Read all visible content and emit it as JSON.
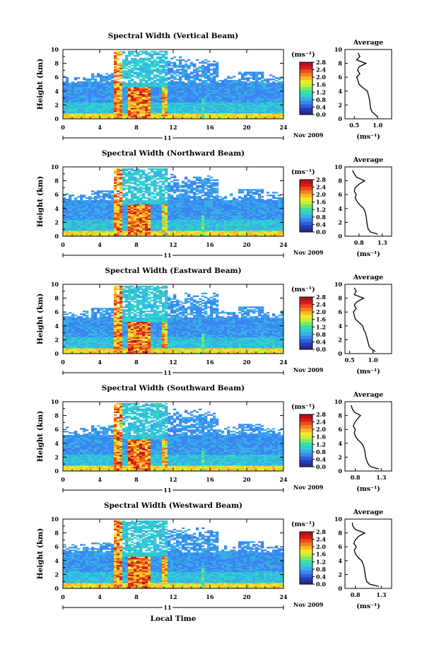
{
  "figure": {
    "xlabel": "Local Time",
    "date_label": "Nov 2009",
    "day_label": "11",
    "colorbar_unit": "(ms⁻¹)",
    "avg_title": "Average",
    "avg_unit": "(ms⁻¹)",
    "ylabel": "Height (km)"
  },
  "colormap": [
    "#2a2a8c",
    "#1f3dbf",
    "#2f5fe0",
    "#3a86f0",
    "#38aee8",
    "#2fd0d0",
    "#3ae0a0",
    "#7de866",
    "#c6ee3a",
    "#f5e62a",
    "#fbb62a",
    "#f7801f",
    "#ee4a1c",
    "#d81c1c",
    "#b4141a"
  ],
  "colorbar_ticks": [
    "0.0",
    "0.4",
    "0.8",
    "1.2",
    "1.6",
    "2.0",
    "2.4",
    "2.8"
  ],
  "chart_data": [
    {
      "type": "heatmap",
      "title": "Spectral Width (Vertical Beam)",
      "xlabel": "Local Time",
      "ylabel": "Height (km)",
      "xlim": [
        0,
        24
      ],
      "ylim": [
        0,
        10
      ],
      "xticks": [
        0,
        4,
        8,
        12,
        16,
        20,
        24
      ],
      "yticks": [
        0,
        2,
        4,
        6,
        8,
        10
      ],
      "colorbar": {
        "label": "(ms⁻¹)",
        "range": [
          0.0,
          2.8
        ],
        "ticks": [
          0.0,
          0.4,
          0.8,
          1.2,
          1.6,
          2.0,
          2.4,
          2.8
        ]
      },
      "average_profile": {
        "title": "Average",
        "xlabel": "(ms⁻¹)",
        "xlim": [
          0.3,
          1.3
        ],
        "xtick_labels": [
          "0.5",
          "1.0"
        ],
        "xticks": [
          0.5,
          1.0
        ],
        "ylim": [
          0,
          10
        ],
        "yticks": [
          0,
          2,
          4,
          6,
          8,
          10
        ],
        "height": [
          0.3,
          0.6,
          1.0,
          1.5,
          2.0,
          2.5,
          3.0,
          3.5,
          4.0,
          4.5,
          5.0,
          5.5,
          6.0,
          6.5,
          7.0,
          7.5,
          8.0,
          8.5,
          9.0,
          9.5
        ],
        "value": [
          1.0,
          0.95,
          0.88,
          0.85,
          0.84,
          0.83,
          0.82,
          0.8,
          0.78,
          0.68,
          0.6,
          0.58,
          0.55,
          0.62,
          0.57,
          0.6,
          0.75,
          0.55,
          0.62,
          0.58
        ]
      }
    },
    {
      "type": "heatmap",
      "title": "Spectral Width (Northward Beam)",
      "xlabel": "Local Time",
      "ylabel": "Height (km)",
      "xlim": [
        0,
        24
      ],
      "ylim": [
        0,
        10
      ],
      "xticks": [
        0,
        4,
        8,
        12,
        16,
        20,
        24
      ],
      "yticks": [
        0,
        2,
        4,
        6,
        8,
        10
      ],
      "colorbar": {
        "label": "(ms⁻¹)",
        "range": [
          0.0,
          2.8
        ],
        "ticks": [
          0.0,
          0.4,
          0.8,
          1.2,
          1.6,
          2.0,
          2.4,
          2.8
        ]
      },
      "average_profile": {
        "title": "Average",
        "xlabel": "(ms⁻¹)",
        "xlim": [
          0.5,
          1.5
        ],
        "xtick_labels": [
          "0.8",
          "1.3"
        ],
        "xticks": [
          0.8,
          1.3
        ],
        "ylim": [
          0,
          10
        ],
        "yticks": [
          0,
          2,
          4,
          6,
          8,
          10
        ],
        "height": [
          0.3,
          0.6,
          1.0,
          1.5,
          2.0,
          2.5,
          3.0,
          3.5,
          4.0,
          4.5,
          5.0,
          5.5,
          6.0,
          6.5,
          7.0,
          7.5,
          8.0,
          8.5,
          9.0,
          9.5
        ],
        "value": [
          1.2,
          1.05,
          1.0,
          0.98,
          0.97,
          0.96,
          0.95,
          0.93,
          0.9,
          0.82,
          0.76,
          0.72,
          0.74,
          0.7,
          0.72,
          0.8,
          0.92,
          0.75,
          0.7,
          0.66
        ]
      }
    },
    {
      "type": "heatmap",
      "title": "Spectral Width (Eastward Beam)",
      "xlabel": "Local Time",
      "ylabel": "Height (km)",
      "xlim": [
        0,
        24
      ],
      "ylim": [
        0,
        10
      ],
      "xticks": [
        0,
        4,
        8,
        12,
        16,
        20,
        24
      ],
      "yticks": [
        0,
        2,
        4,
        6,
        8,
        10
      ],
      "colorbar": {
        "label": "(ms⁻¹)",
        "range": [
          0.0,
          2.8
        ],
        "ticks": [
          0.0,
          0.4,
          0.8,
          1.2,
          1.6,
          2.0,
          2.4,
          2.8
        ]
      },
      "average_profile": {
        "title": "Average",
        "xlabel": "(ms⁻¹)",
        "xlim": [
          0.4,
          1.4
        ],
        "xtick_labels": [
          "0.5",
          "1.0"
        ],
        "xticks": [
          0.5,
          1.0
        ],
        "ylim": [
          0,
          10
        ],
        "yticks": [
          0,
          2,
          4,
          6,
          8,
          10
        ],
        "height": [
          0.3,
          0.6,
          1.0,
          1.5,
          2.0,
          2.5,
          3.0,
          3.5,
          4.0,
          4.5,
          5.0,
          5.5,
          6.0,
          6.5,
          7.0,
          7.5,
          8.0,
          8.5,
          9.0,
          9.5
        ],
        "value": [
          1.05,
          0.98,
          0.92,
          0.9,
          0.88,
          0.86,
          0.84,
          0.8,
          0.78,
          0.7,
          0.62,
          0.6,
          0.58,
          0.64,
          0.6,
          0.66,
          0.8,
          0.6,
          0.64,
          0.6
        ]
      }
    },
    {
      "type": "heatmap",
      "title": "Spectral Width (Southward Beam)",
      "xlabel": "Local Time",
      "ylabel": "Height (km)",
      "xlim": [
        0,
        24
      ],
      "ylim": [
        0,
        10
      ],
      "xticks": [
        0,
        4,
        8,
        12,
        16,
        20,
        24
      ],
      "yticks": [
        0,
        2,
        4,
        6,
        8,
        10
      ],
      "colorbar": {
        "label": "(ms⁻¹)",
        "range": [
          0.0,
          2.8
        ],
        "ticks": [
          0.0,
          0.4,
          0.8,
          1.2,
          1.6,
          2.0,
          2.4,
          2.8
        ]
      },
      "average_profile": {
        "title": "Average",
        "xlabel": "(ms⁻¹)",
        "xlim": [
          0.6,
          1.5
        ],
        "xtick_labels": [
          "0.8",
          "1.3"
        ],
        "xticks": [
          0.8,
          1.3
        ],
        "ylim": [
          0,
          10
        ],
        "yticks": [
          0,
          2,
          4,
          6,
          8,
          10
        ],
        "height": [
          0.3,
          0.6,
          1.0,
          1.5,
          2.0,
          2.5,
          3.0,
          3.5,
          4.0,
          4.5,
          5.0,
          5.5,
          6.0,
          6.5,
          7.0,
          7.5,
          8.0,
          8.5,
          9.0,
          9.5
        ],
        "value": [
          1.25,
          1.1,
          1.05,
          1.02,
          1.0,
          0.99,
          0.98,
          0.96,
          0.92,
          0.85,
          0.8,
          0.78,
          0.8,
          0.76,
          0.79,
          0.84,
          0.9,
          0.78,
          0.74,
          0.72
        ]
      }
    },
    {
      "type": "heatmap",
      "title": "Spectral Width (Westward Beam)",
      "xlabel": "Local Time",
      "ylabel": "Height (km)",
      "xlim": [
        0,
        24
      ],
      "ylim": [
        0,
        10
      ],
      "xticks": [
        0,
        4,
        8,
        12,
        16,
        20,
        24
      ],
      "yticks": [
        0,
        2,
        4,
        6,
        8,
        10
      ],
      "colorbar": {
        "label": "(ms⁻¹)",
        "range": [
          0.0,
          2.8
        ],
        "ticks": [
          0.0,
          0.4,
          0.8,
          1.2,
          1.6,
          2.0,
          2.4,
          2.8
        ]
      },
      "average_profile": {
        "title": "Average",
        "xlabel": "(ms⁻¹)",
        "xlim": [
          0.6,
          1.5
        ],
        "xtick_labels": [
          "0.8",
          "1.3"
        ],
        "xticks": [
          0.8,
          1.3
        ],
        "ylim": [
          0,
          10
        ],
        "yticks": [
          0,
          2,
          4,
          6,
          8,
          10
        ],
        "height": [
          0.3,
          0.6,
          1.0,
          1.5,
          2.0,
          2.5,
          3.0,
          3.5,
          4.0,
          4.5,
          5.0,
          5.5,
          6.0,
          6.5,
          7.0,
          7.5,
          8.0,
          8.5,
          9.0,
          9.5
        ],
        "value": [
          1.25,
          1.08,
          1.02,
          1.0,
          0.99,
          0.98,
          0.97,
          0.95,
          0.92,
          0.85,
          0.8,
          0.78,
          0.82,
          0.77,
          0.8,
          0.86,
          0.98,
          0.8,
          0.75,
          0.74
        ]
      }
    }
  ]
}
